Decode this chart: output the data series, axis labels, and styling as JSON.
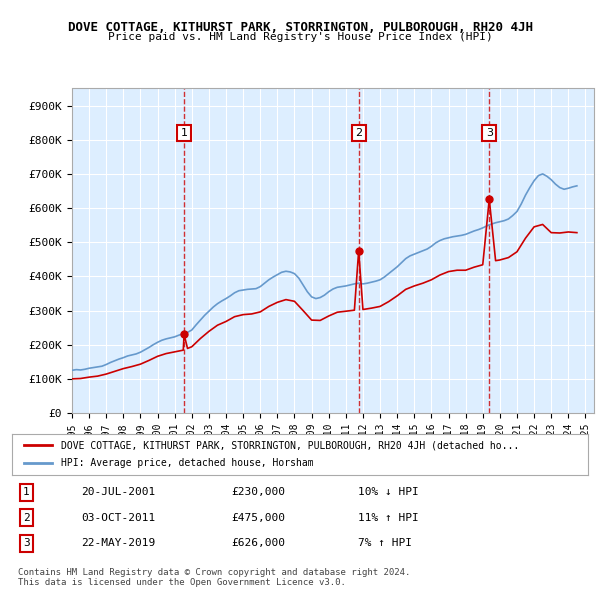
{
  "title": "DOVE COTTAGE, KITHURST PARK, STORRINGTON, PULBOROUGH, RH20 4JH",
  "subtitle": "Price paid vs. HM Land Registry's House Price Index (HPI)",
  "ylabel": "",
  "ylim": [
    0,
    950000
  ],
  "yticks": [
    0,
    100000,
    200000,
    300000,
    400000,
    500000,
    600000,
    700000,
    800000,
    900000
  ],
  "ytick_labels": [
    "£0",
    "£100K",
    "£200K",
    "£300K",
    "£400K",
    "£500K",
    "£600K",
    "£700K",
    "£800K",
    "£900K"
  ],
  "xlim_start": 1995.0,
  "xlim_end": 2025.5,
  "xticks": [
    1995,
    1996,
    1997,
    1998,
    1999,
    2000,
    2001,
    2002,
    2003,
    2004,
    2005,
    2006,
    2007,
    2008,
    2009,
    2010,
    2011,
    2012,
    2013,
    2014,
    2015,
    2016,
    2017,
    2018,
    2019,
    2020,
    2021,
    2022,
    2023,
    2024,
    2025
  ],
  "background_color": "#ddeeff",
  "plot_bg_color": "#ddeeff",
  "grid_color": "#ffffff",
  "sale_line_color": "#cc0000",
  "hpi_line_color": "#6699cc",
  "sale_marker_color": "#cc0000",
  "vline_color": "#cc0000",
  "box_color": "#cc0000",
  "transactions": [
    {
      "id": 1,
      "date": "20-JUL-2001",
      "year": 2001.55,
      "price": 230000,
      "pct": "10%",
      "dir": "↓"
    },
    {
      "id": 2,
      "date": "03-OCT-2011",
      "year": 2011.75,
      "price": 475000,
      "pct": "11%",
      "dir": "↑"
    },
    {
      "id": 3,
      "date": "22-MAY-2019",
      "year": 2019.38,
      "price": 626000,
      "pct": "7%",
      "dir": "↑"
    }
  ],
  "legend_entries": [
    "DOVE COTTAGE, KITHURST PARK, STORRINGTON, PULBOROUGH, RH20 4JH (detached ho...",
    "HPI: Average price, detached house, Horsham"
  ],
  "footer_lines": [
    "Contains HM Land Registry data © Crown copyright and database right 2024.",
    "This data is licensed under the Open Government Licence v3.0."
  ],
  "hpi_data": {
    "years": [
      1995.0,
      1995.25,
      1995.5,
      1995.75,
      1996.0,
      1996.25,
      1996.5,
      1996.75,
      1997.0,
      1997.25,
      1997.5,
      1997.75,
      1998.0,
      1998.25,
      1998.5,
      1998.75,
      1999.0,
      1999.25,
      1999.5,
      1999.75,
      2000.0,
      2000.25,
      2000.5,
      2000.75,
      2001.0,
      2001.25,
      2001.5,
      2001.75,
      2002.0,
      2002.25,
      2002.5,
      2002.75,
      2003.0,
      2003.25,
      2003.5,
      2003.75,
      2004.0,
      2004.25,
      2004.5,
      2004.75,
      2005.0,
      2005.25,
      2005.5,
      2005.75,
      2006.0,
      2006.25,
      2006.5,
      2006.75,
      2007.0,
      2007.25,
      2007.5,
      2007.75,
      2008.0,
      2008.25,
      2008.5,
      2008.75,
      2009.0,
      2009.25,
      2009.5,
      2009.75,
      2010.0,
      2010.25,
      2010.5,
      2010.75,
      2011.0,
      2011.25,
      2011.5,
      2011.75,
      2012.0,
      2012.25,
      2012.5,
      2012.75,
      2013.0,
      2013.25,
      2013.5,
      2013.75,
      2014.0,
      2014.25,
      2014.5,
      2014.75,
      2015.0,
      2015.25,
      2015.5,
      2015.75,
      2016.0,
      2016.25,
      2016.5,
      2016.75,
      2017.0,
      2017.25,
      2017.5,
      2017.75,
      2018.0,
      2018.25,
      2018.5,
      2018.75,
      2019.0,
      2019.25,
      2019.5,
      2019.75,
      2020.0,
      2020.25,
      2020.5,
      2020.75,
      2021.0,
      2021.25,
      2021.5,
      2021.75,
      2022.0,
      2022.25,
      2022.5,
      2022.75,
      2023.0,
      2023.25,
      2023.5,
      2023.75,
      2024.0,
      2024.25,
      2024.5
    ],
    "values": [
      125000,
      127000,
      126000,
      128000,
      131000,
      133000,
      135000,
      137000,
      142000,
      148000,
      153000,
      158000,
      162000,
      167000,
      170000,
      173000,
      178000,
      185000,
      192000,
      200000,
      207000,
      213000,
      217000,
      220000,
      223000,
      228000,
      232000,
      236000,
      243000,
      258000,
      272000,
      286000,
      298000,
      310000,
      320000,
      328000,
      335000,
      343000,
      352000,
      358000,
      360000,
      362000,
      363000,
      364000,
      370000,
      380000,
      390000,
      398000,
      405000,
      412000,
      415000,
      413000,
      408000,
      395000,
      375000,
      355000,
      340000,
      335000,
      338000,
      345000,
      355000,
      363000,
      368000,
      370000,
      372000,
      375000,
      378000,
      380000,
      378000,
      380000,
      383000,
      386000,
      390000,
      398000,
      408000,
      418000,
      428000,
      440000,
      452000,
      460000,
      465000,
      470000,
      475000,
      480000,
      488000,
      498000,
      505000,
      510000,
      513000,
      516000,
      518000,
      520000,
      523000,
      528000,
      533000,
      537000,
      542000,
      548000,
      553000,
      557000,
      560000,
      563000,
      568000,
      578000,
      590000,
      612000,
      638000,
      660000,
      680000,
      695000,
      700000,
      693000,
      683000,
      670000,
      660000,
      655000,
      658000,
      662000,
      665000
    ]
  },
  "sale_hpi_data": {
    "years": [
      1995.0,
      1995.5,
      1996.0,
      1996.5,
      1997.0,
      1997.5,
      1998.0,
      1998.5,
      1999.0,
      1999.5,
      2000.0,
      2000.5,
      2001.0,
      2001.5,
      2001.55,
      2001.75,
      2002.0,
      2002.5,
      2003.0,
      2003.5,
      2004.0,
      2004.5,
      2005.0,
      2005.5,
      2006.0,
      2006.5,
      2007.0,
      2007.5,
      2008.0,
      2008.5,
      2009.0,
      2009.5,
      2010.0,
      2010.5,
      2011.0,
      2011.5,
      2011.75,
      2012.0,
      2012.5,
      2013.0,
      2013.5,
      2014.0,
      2014.5,
      2015.0,
      2015.5,
      2016.0,
      2016.5,
      2017.0,
      2017.5,
      2018.0,
      2018.5,
      2019.0,
      2019.38,
      2019.75,
      2020.0,
      2020.5,
      2021.0,
      2021.5,
      2022.0,
      2022.5,
      2023.0,
      2023.5,
      2024.0,
      2024.5
    ],
    "values": [
      100000,
      101000,
      105000,
      108000,
      114000,
      122000,
      130000,
      136000,
      143000,
      154000,
      166000,
      174000,
      179000,
      184000,
      230000,
      189000,
      194000,
      218000,
      239000,
      257000,
      268000,
      282000,
      288000,
      290000,
      296000,
      312000,
      324000,
      332000,
      327000,
      300000,
      272000,
      271000,
      284000,
      295000,
      298000,
      301000,
      475000,
      303000,
      307000,
      312000,
      326000,
      343000,
      362000,
      372000,
      380000,
      390000,
      404000,
      414000,
      418000,
      418000,
      427000,
      434000,
      626000,
      446000,
      448000,
      455000,
      472000,
      512000,
      545000,
      552000,
      528000,
      527000,
      530000,
      528000
    ]
  }
}
